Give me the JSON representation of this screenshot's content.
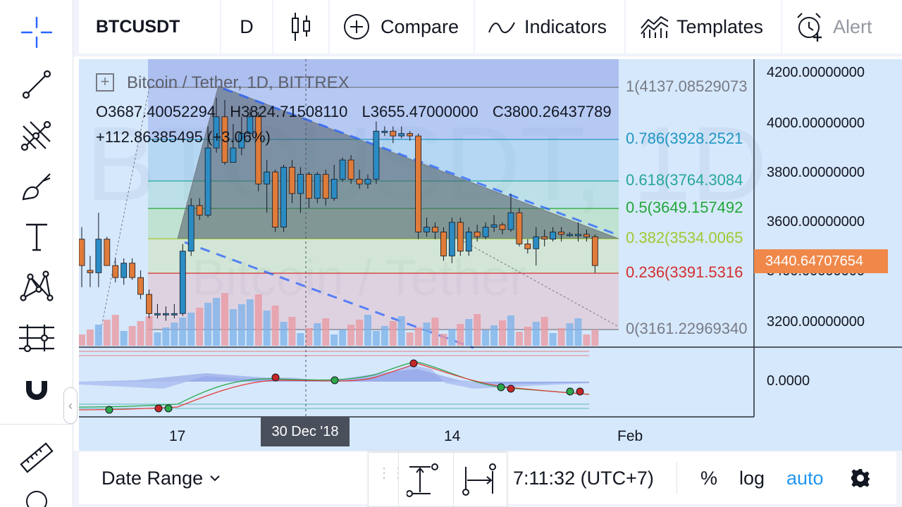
{
  "colors": {
    "accent": "#2962ff",
    "up_candle": "#2b8cc4",
    "down_candle": "#e07b39",
    "auto_active": "#2196f3",
    "price_badge": "#f0884a"
  },
  "left_toolbar": {
    "items": [
      {
        "name": "crosshair-icon"
      },
      {
        "name": "trend-line-icon"
      },
      {
        "name": "pitchfork-icon"
      },
      {
        "name": "brush-icon"
      },
      {
        "name": "text-icon"
      },
      {
        "name": "pattern-icon"
      },
      {
        "name": "prediction-icon"
      },
      {
        "name": "magnet-icon"
      },
      {
        "name": "ruler-icon"
      }
    ]
  },
  "top_toolbar": {
    "symbol": "BTCUSDT",
    "interval": "D",
    "compare_label": "Compare",
    "indicators_label": "Indicators",
    "templates_label": "Templates",
    "alert_label": "Alert"
  },
  "legend": {
    "title": "Bitcoin / Tether, 1D, BITTREX",
    "open": "O3687.40052294",
    "high": "H3824.71508110",
    "low": "L3655.47000000",
    "close": "C3800.26437789",
    "change": "+112.86385495 (+3.06%)"
  },
  "watermark": {
    "symbol": "BTCUSDT, 1D",
    "description": "Bitcoin / Tether"
  },
  "fib_levels": [
    {
      "label": "1(4137.08529073",
      "color": "#787b86"
    },
    {
      "label": "0.786(3928.2521",
      "color": "#2196c4"
    },
    {
      "label": "0.618(3764.3084",
      "color": "#26a69a"
    },
    {
      "label": "0.5(3649.157492",
      "color": "#22a63a"
    },
    {
      "label": "0.382(3534.0065",
      "color": "#a1c832"
    },
    {
      "label": "0.236(3391.5316",
      "color": "#d32f2f"
    },
    {
      "label": "0(3161.22969340",
      "color": "#787b86"
    }
  ],
  "price_axis": {
    "ticks": [
      "4200.00000000",
      "4000.00000000",
      "3800.00000000",
      "3600.00000000",
      "3400.00000000",
      "3200.00000000"
    ],
    "current_price": "3440.64707654",
    "indicator_tick": "0.0000"
  },
  "time_axis": {
    "ticks": [
      "17",
      "14",
      "Feb"
    ],
    "crosshair_label": "30 Dec '18"
  },
  "chart_data": {
    "type": "candlestick",
    "candles": [
      {
        "o": 3550,
        "c": 3440,
        "h": 3600,
        "l": 3350
      },
      {
        "o": 3420,
        "c": 3410,
        "h": 3480,
        "l": 3350
      },
      {
        "o": 3410,
        "c": 3550,
        "h": 3660,
        "l": 3350
      },
      {
        "o": 3550,
        "c": 3440,
        "h": 3560,
        "l": 3440
      },
      {
        "o": 3440,
        "c": 3390,
        "h": 3470,
        "l": 3370
      },
      {
        "o": 3390,
        "c": 3450,
        "h": 3470,
        "l": 3360
      },
      {
        "o": 3450,
        "c": 3390,
        "h": 3470,
        "l": 3380
      },
      {
        "o": 3390,
        "c": 3320,
        "h": 3420,
        "l": 3300
      },
      {
        "o": 3320,
        "c": 3240,
        "h": 3340,
        "l": 3220
      },
      {
        "o": 3240,
        "c": 3240,
        "h": 3280,
        "l": 3220
      },
      {
        "o": 3240,
        "c": 3240,
        "h": 3270,
        "l": 3210
      },
      {
        "o": 3240,
        "c": 3240,
        "h": 3280,
        "l": 3220
      },
      {
        "o": 3240,
        "c": 3500,
        "h": 3530,
        "l": 3230
      },
      {
        "o": 3500,
        "c": 3690,
        "h": 3720,
        "l": 3480
      },
      {
        "o": 3690,
        "c": 3650,
        "h": 3720,
        "l": 3630
      },
      {
        "o": 3650,
        "c": 3930,
        "h": 4020,
        "l": 3640
      },
      {
        "o": 3930,
        "c": 4060,
        "h": 4140,
        "l": 3910
      },
      {
        "o": 4060,
        "c": 3870,
        "h": 4130,
        "l": 3860
      },
      {
        "o": 3870,
        "c": 3930,
        "h": 4030,
        "l": 3870
      },
      {
        "o": 3930,
        "c": 3990,
        "h": 4060,
        "l": 3900
      },
      {
        "o": 3990,
        "c": 4060,
        "h": 4090,
        "l": 3970
      },
      {
        "o": 4060,
        "c": 3780,
        "h": 4080,
        "l": 3750
      },
      {
        "o": 3780,
        "c": 3830,
        "h": 3880,
        "l": 3660
      },
      {
        "o": 3830,
        "c": 3600,
        "h": 3840,
        "l": 3580
      },
      {
        "o": 3600,
        "c": 3850,
        "h": 3860,
        "l": 3580
      },
      {
        "o": 3850,
        "c": 3740,
        "h": 3880,
        "l": 3700
      },
      {
        "o": 3740,
        "c": 3820,
        "h": 3850,
        "l": 3660
      },
      {
        "o": 3820,
        "c": 3720,
        "h": 3830,
        "l": 3680
      },
      {
        "o": 3720,
        "c": 3820,
        "h": 3830,
        "l": 3700
      },
      {
        "o": 3820,
        "c": 3720,
        "h": 3840,
        "l": 3690
      },
      {
        "o": 3720,
        "c": 3800,
        "h": 3860,
        "l": 3710
      },
      {
        "o": 3800,
        "c": 3880,
        "h": 3890,
        "l": 3790
      },
      {
        "o": 3880,
        "c": 3800,
        "h": 3900,
        "l": 3780
      },
      {
        "o": 3800,
        "c": 3780,
        "h": 3840,
        "l": 3760
      },
      {
        "o": 3780,
        "c": 3800,
        "h": 3820,
        "l": 3760
      },
      {
        "o": 3800,
        "c": 4000,
        "h": 4040,
        "l": 3780
      },
      {
        "o": 4000,
        "c": 4000,
        "h": 4020,
        "l": 3980
      },
      {
        "o": 4000,
        "c": 3980,
        "h": 4020,
        "l": 3950
      },
      {
        "o": 3980,
        "c": 3990,
        "h": 4020,
        "l": 3970
      },
      {
        "o": 3990,
        "c": 3980,
        "h": 4000,
        "l": 3960
      },
      {
        "o": 3980,
        "c": 3580,
        "h": 3990,
        "l": 3550
      },
      {
        "o": 3580,
        "c": 3600,
        "h": 3640,
        "l": 3560
      },
      {
        "o": 3600,
        "c": 3580,
        "h": 3620,
        "l": 3550
      },
      {
        "o": 3580,
        "c": 3480,
        "h": 3600,
        "l": 3460
      },
      {
        "o": 3480,
        "c": 3620,
        "h": 3640,
        "l": 3450
      },
      {
        "o": 3620,
        "c": 3500,
        "h": 3640,
        "l": 3480
      },
      {
        "o": 3500,
        "c": 3580,
        "h": 3600,
        "l": 3480
      },
      {
        "o": 3580,
        "c": 3560,
        "h": 3610,
        "l": 3540
      },
      {
        "o": 3560,
        "c": 3600,
        "h": 3620,
        "l": 3550
      },
      {
        "o": 3600,
        "c": 3610,
        "h": 3650,
        "l": 3580
      },
      {
        "o": 3610,
        "c": 3590,
        "h": 3620,
        "l": 3570
      },
      {
        "o": 3590,
        "c": 3660,
        "h": 3740,
        "l": 3580
      },
      {
        "o": 3660,
        "c": 3530,
        "h": 3680,
        "l": 3520
      },
      {
        "o": 3530,
        "c": 3510,
        "h": 3550,
        "l": 3490
      },
      {
        "o": 3510,
        "c": 3560,
        "h": 3600,
        "l": 3440
      },
      {
        "o": 3560,
        "c": 3550,
        "h": 3590,
        "l": 3520
      },
      {
        "o": 3550,
        "c": 3580,
        "h": 3600,
        "l": 3540
      },
      {
        "o": 3580,
        "c": 3570,
        "h": 3600,
        "l": 3540
      },
      {
        "o": 3570,
        "c": 3570,
        "h": 3580,
        "l": 3560
      },
      {
        "o": 3570,
        "c": 3570,
        "h": 3620,
        "l": 3540
      },
      {
        "o": 3570,
        "c": 3560,
        "h": 3590,
        "l": 3540
      },
      {
        "o": 3560,
        "c": 3440,
        "h": 3570,
        "l": 3410
      }
    ],
    "ylim": [
      3100,
      4300
    ]
  },
  "bottom_bar": {
    "date_range_label": "Date Range",
    "clock": "7:11:32 (UTC+7)",
    "percent_label": "%",
    "log_label": "log",
    "auto_label": "auto"
  }
}
